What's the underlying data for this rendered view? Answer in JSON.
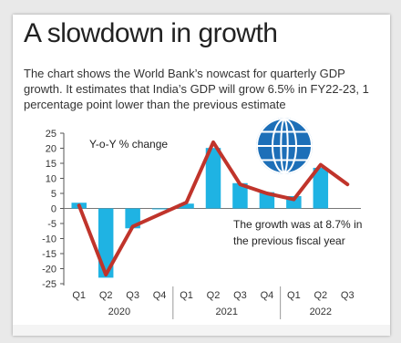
{
  "header": {
    "title": "A slowdown in growth",
    "subtitle": "The chart shows the World Bank’s nowcast for quarterly GDP growth. It estimates that India’s GDP will grow 6.5% in FY22-23, 1 percentage point lower than the previous estimate"
  },
  "chart_data": {
    "type": "bar",
    "title": "A slowdown in growth",
    "ylabel": "Y-o-Y % change",
    "ylim": [
      -25,
      25
    ],
    "yticks": [
      25,
      20,
      15,
      10,
      5,
      0,
      -5,
      -10,
      -15,
      -20,
      -25
    ],
    "categories": [
      "Q1",
      "Q2",
      "Q3",
      "Q4",
      "Q1",
      "Q2",
      "Q3",
      "Q4",
      "Q1",
      "Q2",
      "Q3"
    ],
    "years": [
      {
        "label": "2020",
        "span": [
          0,
          3
        ]
      },
      {
        "label": "2021",
        "span": [
          4,
          7
        ]
      },
      {
        "label": "2022",
        "span": [
          8,
          10
        ]
      }
    ],
    "series": [
      {
        "kind": "bar",
        "values": [
          1.9,
          -23.0,
          -6.6,
          -0.3,
          1.6,
          20.1,
          8.4,
          5.4,
          4.1,
          13.5,
          null
        ]
      },
      {
        "kind": "line",
        "values": [
          1.0,
          -22.0,
          -6.0,
          -2.0,
          2.0,
          22.0,
          8.0,
          5.0,
          3.0,
          14.5,
          8.0
        ]
      }
    ],
    "annotation": "The growth was at 8.7% in the previous fiscal year",
    "colors": {
      "bar": "#1fb3e3",
      "line": "#c0342b",
      "axis": "#555555"
    },
    "grid": false,
    "legend": "none"
  },
  "icon": {
    "name": "globe-icon",
    "color": "#1d6fb8"
  }
}
